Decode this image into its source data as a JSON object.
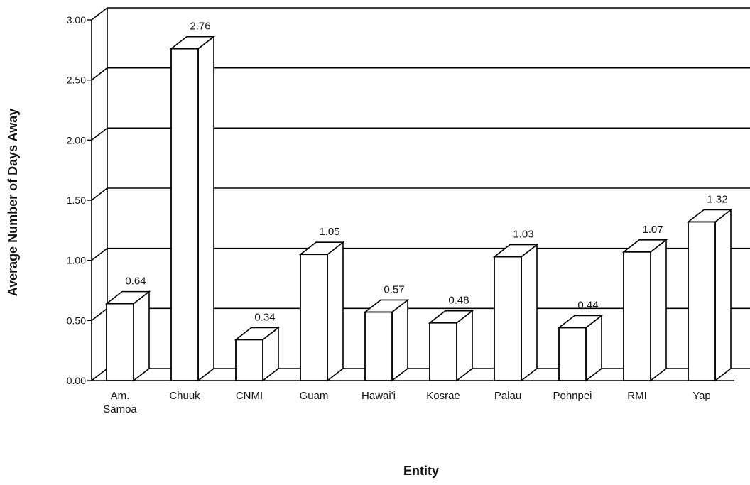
{
  "chart_data": {
    "type": "bar",
    "style": "3d-columns",
    "title": "",
    "xlabel": "Entity",
    "ylabel": "Average Number of Days Away",
    "categories": [
      [
        "Am.",
        "Samoa"
      ],
      [
        "Chuuk"
      ],
      [
        "CNMI"
      ],
      [
        "Guam"
      ],
      [
        "Hawai'i"
      ],
      [
        "Kosrae"
      ],
      [
        "Palau"
      ],
      [
        "Pohnpei"
      ],
      [
        "RMI"
      ],
      [
        "Yap"
      ]
    ],
    "values": [
      0.64,
      2.76,
      0.34,
      1.05,
      0.57,
      0.48,
      1.03,
      0.44,
      1.07,
      1.32
    ],
    "value_labels": [
      "0.64",
      "2.76",
      "0.34",
      "1.05",
      "0.57",
      "0.48",
      "1.03",
      "0.44",
      "1.07",
      "1.32"
    ],
    "yticks": [
      "0.00",
      "0.50",
      "1.00",
      "1.50",
      "2.00",
      "2.50",
      "3.00"
    ],
    "ylim": [
      0,
      3
    ],
    "grid": true,
    "legend": "none",
    "colors": {
      "bar": "#ffffff",
      "stroke": "#000000"
    }
  }
}
